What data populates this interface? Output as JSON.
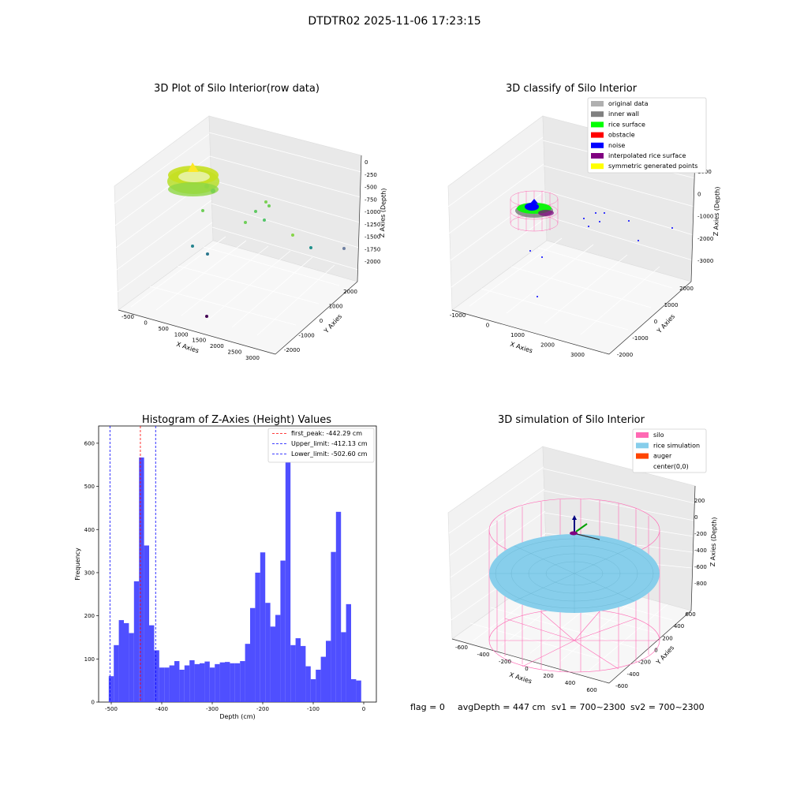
{
  "suptitle": "DTDTR02 2025-11-06 17:23:15",
  "footer": {
    "flag": "flag = 0",
    "avg_depth": "avgDepth = 447 cm",
    "sv1": "sv1 = 700~2300",
    "sv2": "sv2 = 700~2300"
  },
  "panels": {
    "raw": {
      "title": "3D Plot of Silo Interior(row data)",
      "xlabel": "X Axies",
      "ylabel": "Y Axies",
      "zlabel": "Z Axies (Depth)",
      "xticks": [
        "-500",
        "0",
        "500",
        "1000",
        "1500",
        "2000",
        "2500",
        "3000"
      ],
      "yticks": [
        "-2000",
        "-1000",
        "0",
        "1000",
        "2000"
      ],
      "zticks": [
        "0",
        "-250",
        "-500",
        "-750",
        "-1000",
        "-1250",
        "-1500",
        "-1750",
        "-2000"
      ]
    },
    "classify": {
      "title": "3D classify of Silo Interior",
      "xlabel": "X Axies",
      "ylabel": "Y Axies",
      "zlabel": "Z Axies (Depth)",
      "xticks": [
        "-1000",
        "0",
        "1000",
        "2000",
        "3000"
      ],
      "yticks": [
        "-2000",
        "-1000",
        "0",
        "1000",
        "2000"
      ],
      "zticks": [
        "1000",
        "0",
        "-1000",
        "-2000",
        "-3000"
      ],
      "legend": [
        {
          "label": "original data",
          "color": "#b0b0b0"
        },
        {
          "label": "inner wall",
          "color": "#808080"
        },
        {
          "label": "rice surface",
          "color": "#00ff00"
        },
        {
          "label": "obstacle",
          "color": "#ff0000"
        },
        {
          "label": "noise",
          "color": "#0000ff"
        },
        {
          "label": "interpolated rice surface",
          "color": "#800080"
        },
        {
          "label": "symmetric generated points",
          "color": "#ffff00"
        }
      ]
    },
    "simulation": {
      "title": "3D simulation of Silo Interior",
      "xlabel": "X Axies",
      "ylabel": "Y Axies",
      "zlabel": "Z Axies (Depth)",
      "xticks": [
        "-600",
        "-400",
        "-200",
        "0",
        "200",
        "400",
        "600"
      ],
      "yticks": [
        "-600",
        "-400",
        "-200",
        "0",
        "200",
        "400",
        "600"
      ],
      "zticks": [
        "200",
        "0",
        "-200",
        "-400",
        "-600",
        "-800"
      ],
      "legend": [
        {
          "label": "silo",
          "color": "#ff69b4"
        },
        {
          "label": "rice simulation",
          "color": "#87ceeb"
        },
        {
          "label": "auger",
          "color": "#ff4500"
        },
        {
          "label": "center(0,0)",
          "color": "#ffffff"
        }
      ]
    }
  },
  "chart_data": [
    {
      "type": "bar",
      "title": "Histogram of Z-Axies (Height) Values",
      "xlabel": "Depth (cm)",
      "ylabel": "Frequency",
      "xlim": [
        -525,
        25
      ],
      "ylim": [
        0,
        640
      ],
      "x_ticks": [
        -500,
        -400,
        -300,
        -200,
        -100,
        0
      ],
      "y_ticks": [
        0,
        100,
        200,
        300,
        400,
        500,
        600
      ],
      "bin_width": 10,
      "bin_start": -505,
      "bar_color": "#4040ff",
      "values": [
        60,
        132,
        190,
        183,
        160,
        280,
        567,
        363,
        178,
        120,
        80,
        80,
        85,
        95,
        75,
        85,
        97,
        88,
        90,
        94,
        80,
        88,
        92,
        93,
        90,
        90,
        95,
        135,
        218,
        300,
        347,
        230,
        175,
        202,
        328,
        610,
        132,
        148,
        130,
        83,
        53,
        75,
        105,
        142,
        348,
        441,
        162,
        227,
        53,
        50
      ],
      "vlines": [
        {
          "label": "first_peak: -442.29 cm",
          "x": -442.29,
          "color": "#ff0000"
        },
        {
          "label": "Upper_limit: -412.13 cm",
          "x": -412.13,
          "color": "#0000ff"
        },
        {
          "label": "Lower_limit: -502.60 cm",
          "x": -502.6,
          "color": "#0000ff"
        }
      ]
    }
  ]
}
